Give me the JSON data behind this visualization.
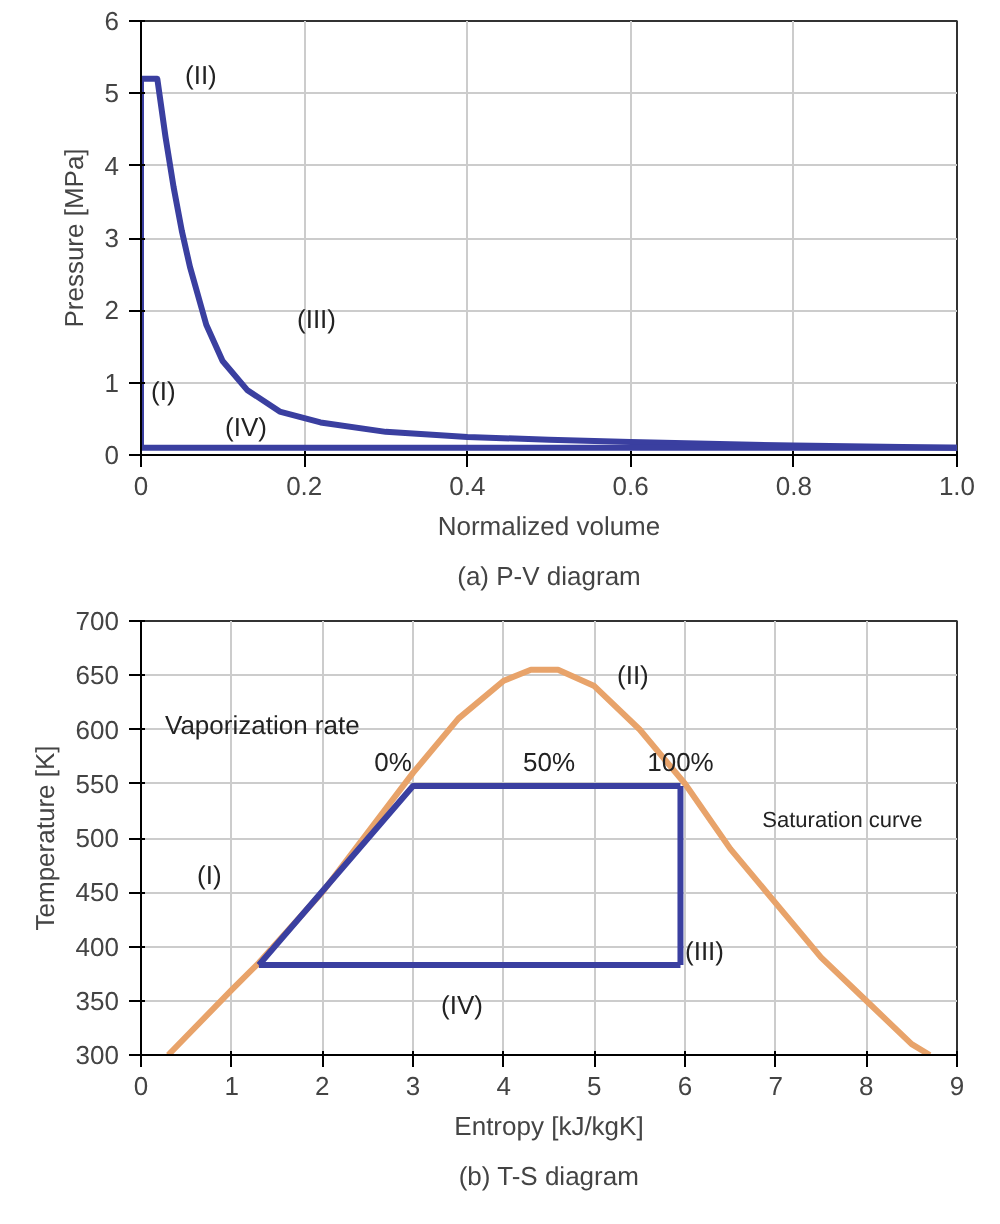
{
  "chart_data": [
    {
      "type": "line",
      "title": "(a) P-V diagram",
      "xlabel": "Normalized volume",
      "ylabel": "Pressure [MPa]",
      "xlim": [
        0,
        1
      ],
      "xticks": [
        0,
        0.2,
        0.4,
        0.6,
        0.8,
        {
          "value": 1,
          "label": "1.0"
        }
      ],
      "ylim": [
        0,
        6
      ],
      "yticks": [
        0,
        1,
        2,
        3,
        4,
        5,
        6
      ],
      "grid": true,
      "marker": "none",
      "line_style": "solid",
      "series": [
        {
          "color": "#3a3fa0",
          "x": [
            0,
            0
          ],
          "values": [
            0.1,
            5.2
          ]
        },
        {
          "color": "#3a3fa0",
          "x": [
            0,
            0.02,
            0.03,
            0.04,
            0.05,
            0.06,
            0.08,
            0.1,
            0.13,
            0.17,
            0.22,
            0.3,
            0.4,
            0.5,
            0.6,
            0.8,
            1.0
          ],
          "values": [
            5.2,
            5.2,
            4.4,
            3.7,
            3.1,
            2.6,
            1.8,
            1.3,
            0.9,
            0.6,
            0.45,
            0.32,
            0.25,
            0.21,
            0.18,
            0.13,
            0.1
          ]
        },
        {
          "color": "#3a3fa0",
          "x": [
            0,
            1.0
          ],
          "values": [
            0.1,
            0.1
          ]
        }
      ],
      "annotations": [
        "(I)",
        "(II)",
        "(III)",
        "(IV)"
      ]
    },
    {
      "type": "line",
      "title": "(b) T-S diagram",
      "xlabel": "Entropy [kJ/kgK]",
      "ylabel": "Temperature [K]",
      "xlim": [
        0,
        9
      ],
      "xticks": [
        0,
        1,
        2,
        3,
        4,
        5,
        6,
        7,
        8,
        9
      ],
      "ylim": [
        300,
        700
      ],
      "yticks": [
        300,
        350,
        400,
        450,
        500,
        550,
        600,
        650,
        700
      ],
      "grid": true,
      "marker": "none",
      "line_style": "solid",
      "series": [
        {
          "color": "#e8a36a",
          "x": [
            0.3,
            1,
            1.3,
            2,
            2.5,
            3,
            3.5,
            4,
            4.3,
            4.6,
            5,
            5.5,
            6,
            6.5,
            7,
            7.5,
            8,
            8.5,
            8.7
          ],
          "values": [
            300,
            360,
            385,
            450,
            505,
            560,
            610,
            645,
            655,
            655,
            640,
            600,
            550,
            490,
            440,
            390,
            350,
            310,
            300
          ]
        },
        {
          "color": "#3a3fa0",
          "x": [
            1.3,
            3,
            5.95
          ],
          "values": [
            383,
            548,
            548
          ]
        },
        {
          "color": "#3a3fa0",
          "x": [
            5.95,
            5.95
          ],
          "values": [
            548,
            383
          ]
        },
        {
          "color": "#3a3fa0",
          "x": [
            1.3,
            5.95
          ],
          "values": [
            383,
            383
          ]
        }
      ],
      "annotations": [
        "Vaporization rate",
        {
          "text": "0%",
          "x": 3,
          "y": 548
        },
        {
          "text": "50%",
          "x": 4.5,
          "y": 548
        },
        {
          "text": "100%",
          "x": 5.95,
          "y": 548
        },
        {
          "text": "Saturation curve",
          "x": 6.5,
          "y": 490
        },
        "(I)",
        "(II)",
        "(III)",
        "(IV)"
      ]
    }
  ]
}
